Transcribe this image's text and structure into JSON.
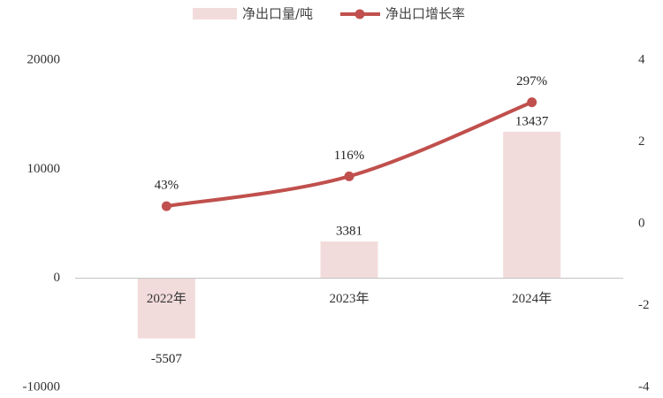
{
  "chart_data": {
    "type": "bar+line",
    "categories": [
      "2022年",
      "2023年",
      "2024年"
    ],
    "series": [
      {
        "name": "净出口量/吨",
        "type": "bar",
        "axis": "left",
        "color": "#f2dcdb",
        "values": [
          -5507,
          3381,
          13437
        ],
        "labels": [
          "-5507",
          "3381",
          "13437"
        ]
      },
      {
        "name": "净出口增长率",
        "type": "line",
        "axis": "right",
        "color": "#c0504d",
        "values": [
          0.43,
          1.16,
          2.97
        ],
        "labels": [
          "43%",
          "116%",
          "297%"
        ]
      }
    ],
    "left_axis": {
      "min": -10000,
      "max": 20000,
      "ticks": [
        "20000",
        "10000",
        "0",
        "-10000"
      ]
    },
    "right_axis": {
      "min": -4,
      "max": 4,
      "ticks": [
        "4",
        "2",
        "0",
        "-2",
        "-4"
      ]
    },
    "grid": false,
    "legend": "top-center"
  }
}
